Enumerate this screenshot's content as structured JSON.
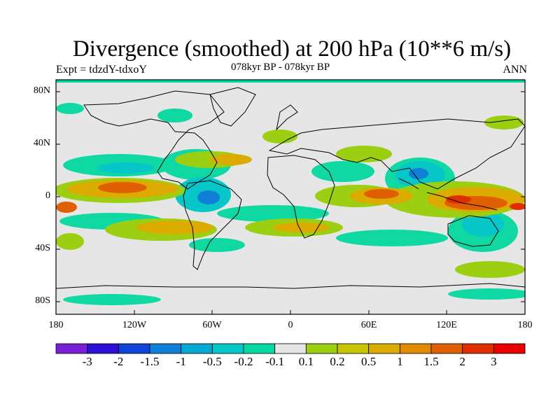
{
  "title": "Divergence (smoothed) at 200 hPa (10**6 m/s)",
  "experiment": "Expt = tdzdY-tdxoY",
  "period": "078kyr BP - 078kyr BP",
  "season": "ANN",
  "lat_ticks": [
    "80N",
    "40N",
    "0",
    "40S",
    "80S"
  ],
  "lon_ticks": [
    "180",
    "120W",
    "60W",
    "0",
    "60E",
    "120E",
    "180"
  ],
  "colorbar": {
    "labels": [
      "-3",
      "-2",
      "-1.5",
      "-1",
      "-0.5",
      "-0.2",
      "-0.1",
      "0.1",
      "0.2",
      "0.5",
      "1",
      "1.5",
      "2",
      "3"
    ],
    "colors": [
      "#7a1fd6",
      "#2d10d6",
      "#1244d4",
      "#0f7fd8",
      "#04a8d2",
      "#06c6c8",
      "#04d8a0",
      "#e6e6e6",
      "#9ccf12",
      "#c7c400",
      "#dcab00",
      "#e08a00",
      "#e05f00",
      "#e02e00",
      "#e80000"
    ]
  }
}
